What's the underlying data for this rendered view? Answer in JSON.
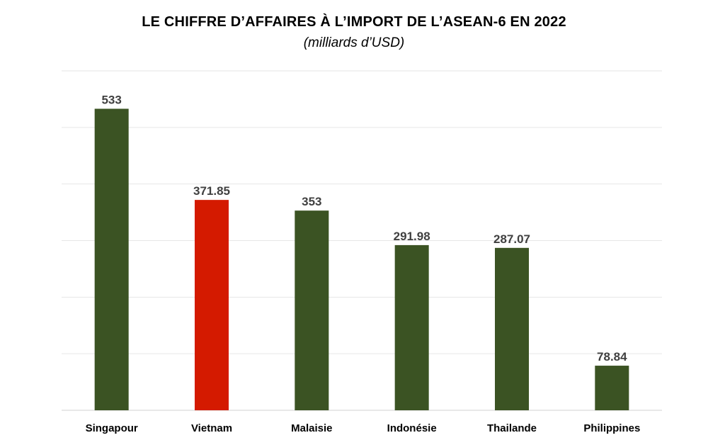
{
  "chart_data": {
    "type": "bar",
    "title": "LE CHIFFRE D’AFFAIRES À L’IMPORT DE L’ASEAN-6 EN 2022",
    "subtitle": "(milliards d’USD)",
    "categories": [
      "Singapour",
      "Vietnam",
      "Malaisie",
      "Indonésie",
      "Thailande",
      "Philippines"
    ],
    "values": [
      533,
      371.85,
      353,
      291.98,
      287.07,
      78.84
    ],
    "data_labels": [
      "533",
      "371.85",
      "353",
      "291.98",
      "287.07",
      "78.84"
    ],
    "ylim": [
      0,
      600
    ],
    "grid": true,
    "colors": {
      "default_bar": "#3b5323",
      "highlight_bar": "#d41a00",
      "highlight_category": "Vietnam"
    }
  }
}
